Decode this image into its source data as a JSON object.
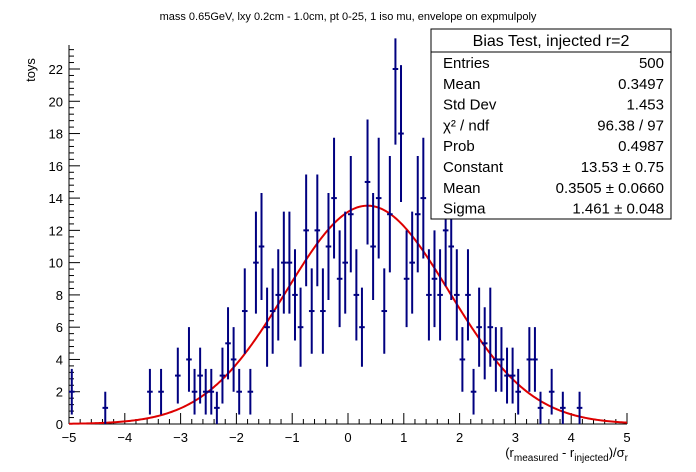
{
  "title": "mass 0.65GeV, lxy 0.2cm - 1.0cm, pt 0-25, 1 iso mu, envelope on expmulpoly",
  "ylabel": "toys",
  "xlabel": {
    "base": "(r",
    "sub1": "measured",
    "mid": " - r",
    "sub2": "injected",
    "end": ")/σ",
    "sub3": "r"
  },
  "stats": {
    "title": "Bias Test, injected r=2",
    "rows": [
      {
        "label": "Entries",
        "value": "500"
      },
      {
        "label": "Mean",
        "value": "0.3497"
      },
      {
        "label": "Std Dev",
        "value": "1.453"
      },
      {
        "label": "χ² / ndf",
        "value": "96.38 / 97"
      },
      {
        "label": "Prob",
        "value": "0.4987"
      },
      {
        "label": "Constant",
        "value": "13.53 ± 0.75"
      },
      {
        "label": "Mean",
        "value": "0.3505 ± 0.0660"
      },
      {
        "label": "Sigma",
        "value": "1.461 ± 0.048"
      }
    ]
  },
  "colors": {
    "data": "#000080",
    "fit": "#dd0000",
    "axis": "#000000"
  },
  "chart_data": {
    "type": "scatter",
    "xlim": [
      -5,
      5
    ],
    "ylim": [
      0,
      24
    ],
    "xticks": [
      -5,
      -4,
      -3,
      -2,
      -1,
      0,
      1,
      2,
      3,
      4,
      5
    ],
    "yticks": [
      0,
      2,
      4,
      6,
      8,
      10,
      12,
      14,
      16,
      18,
      20,
      22
    ],
    "bin_width": 0.1,
    "series": [
      {
        "type": "errorbars",
        "x": [
          -4.95,
          -4.35,
          -3.55,
          -3.35,
          -3.05,
          -2.85,
          -2.75,
          -2.65,
          -2.55,
          -2.45,
          -2.35,
          -2.25,
          -2.15,
          -2.05,
          -1.95,
          -1.85,
          -1.75,
          -1.65,
          -1.55,
          -1.45,
          -1.35,
          -1.25,
          -1.15,
          -1.05,
          -0.95,
          -0.85,
          -0.75,
          -0.65,
          -0.55,
          -0.45,
          -0.35,
          -0.25,
          -0.15,
          -0.05,
          0.05,
          0.15,
          0.25,
          0.35,
          0.45,
          0.55,
          0.65,
          0.75,
          0.85,
          0.95,
          1.05,
          1.15,
          1.25,
          1.35,
          1.45,
          1.55,
          1.65,
          1.75,
          1.85,
          1.95,
          2.05,
          2.15,
          2.25,
          2.35,
          2.45,
          2.55,
          2.65,
          2.75,
          2.85,
          2.95,
          3.05,
          3.25,
          3.35,
          3.45,
          3.65,
          3.85,
          4.15
        ],
        "y": [
          2,
          1,
          2,
          2,
          3,
          4,
          2,
          3,
          2,
          2,
          1,
          3,
          5,
          4,
          2,
          7,
          2,
          10,
          11,
          6,
          7,
          8,
          10,
          10,
          8,
          6,
          12,
          7,
          12,
          7,
          11,
          14,
          9,
          10,
          13,
          8,
          6,
          15,
          11,
          14,
          7,
          13,
          22,
          18,
          9,
          10,
          13,
          14,
          8,
          9,
          8,
          12,
          11,
          8,
          4,
          8,
          2,
          6,
          5,
          6,
          4,
          4,
          3,
          3,
          2,
          4,
          4,
          1,
          2,
          1,
          1
        ]
      },
      {
        "type": "fit",
        "name": "gaus",
        "constant": 13.53,
        "mean": 0.3505,
        "sigma": 1.461
      }
    ]
  }
}
